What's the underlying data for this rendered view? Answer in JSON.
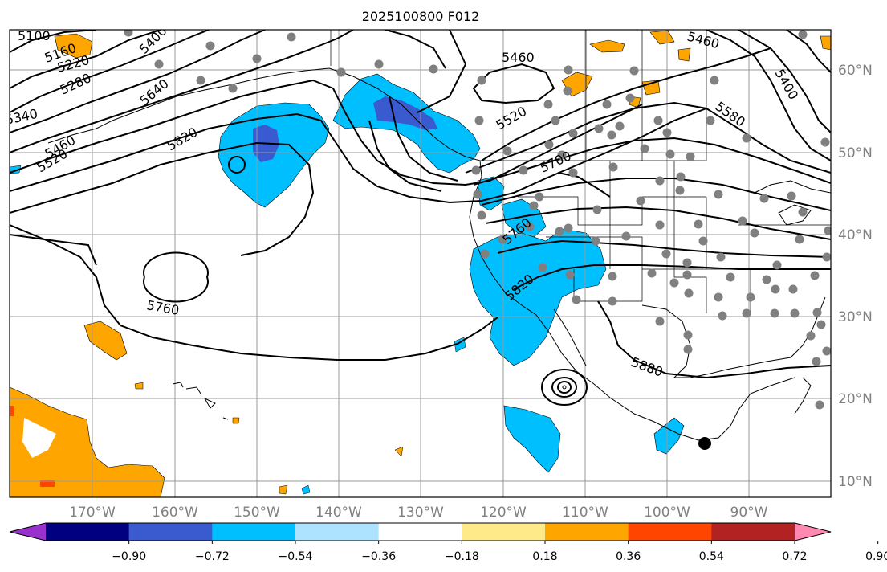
{
  "title": "2025100800 F012",
  "map": {
    "lon_labels": [
      "170°W",
      "160°W",
      "150°W",
      "140°W",
      "130°W",
      "120°W",
      "110°W",
      "100°W",
      "90°W"
    ],
    "lat_labels": [
      "60°N",
      "50°N",
      "40°N",
      "30°N",
      "20°N",
      "10°N"
    ],
    "contour_labels": [
      "5100",
      "5160",
      "5220",
      "5280",
      "5340",
      "5400",
      "5460",
      "5520",
      "5640",
      "5820",
      "5760",
      "5580",
      "5700",
      "5400",
      "5460",
      "5520",
      "5760",
      "5820",
      "5880",
      "5460"
    ]
  },
  "colorbar": {
    "tick_labels": [
      "−0.90",
      "−0.72",
      "−0.54",
      "−0.36",
      "−0.18",
      "0.18",
      "0.36",
      "0.54",
      "0.72",
      "0.90"
    ],
    "colors": [
      "#9932cc",
      "#000080",
      "#3a5bcf",
      "#00bfff",
      "#ade3ff",
      "#ffffff",
      "#ffea8a",
      "#ffa500",
      "#ff4500",
      "#b22222",
      "#ff89b0"
    ]
  }
}
